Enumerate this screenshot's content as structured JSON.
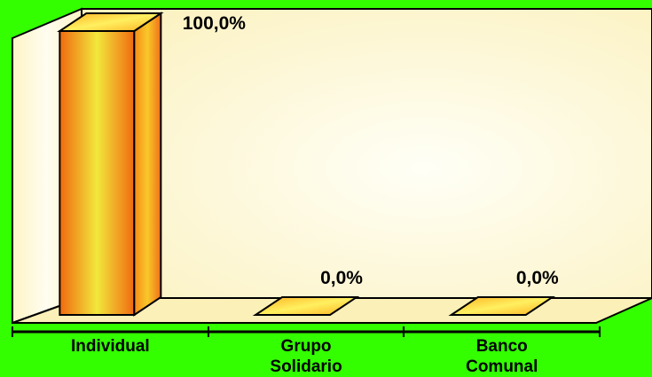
{
  "chart_data": {
    "type": "bar",
    "categories": [
      [
        "Individual"
      ],
      [
        "Grupo",
        "Solidario"
      ],
      [
        "Banco",
        "Comunal"
      ]
    ],
    "values": [
      100.0,
      0.0,
      0.0
    ],
    "data_labels": [
      "100,0%",
      "0,0%",
      "0,0%"
    ],
    "ylim": [
      0,
      100
    ],
    "title": "",
    "xlabel": "",
    "ylabel": "",
    "grid": false,
    "legend": "none",
    "colors": {
      "background": "#33ff00",
      "wall": "#fff7d0",
      "floor": "#fbf0b8",
      "bar_edge": "#f06a10",
      "bar_center": "#f2e83c",
      "bar_side": "#f58a18",
      "bar_top": "#ffd23a",
      "outline": "#000000"
    }
  }
}
